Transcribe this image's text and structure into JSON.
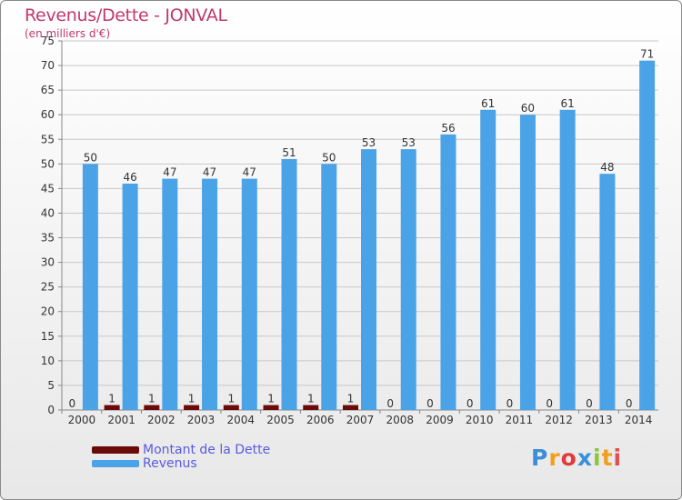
{
  "title": "Revenus/Dette - JONVAL",
  "subtitle": "(en milliers d'€)",
  "colors": {
    "title": "#c0396e",
    "dette": "#6b0a0a",
    "revenus": "#4aa3e6",
    "legend_text": "#5a5ae0"
  },
  "legend": [
    {
      "label": "Montant de la Dette",
      "color": "#6b0a0a"
    },
    {
      "label": "Revenus",
      "color": "#4aa3e6"
    }
  ],
  "logo": "Proxiti",
  "chart_data": {
    "type": "bar",
    "categories": [
      "2000",
      "2001",
      "2002",
      "2003",
      "2004",
      "2005",
      "2006",
      "2007",
      "2008",
      "2009",
      "2010",
      "2011",
      "2012",
      "2013",
      "2014"
    ],
    "series": [
      {
        "name": "Montant de la Dette",
        "values": [
          0,
          1,
          1,
          1,
          1,
          1,
          1,
          1,
          0,
          0,
          0,
          0,
          0,
          0,
          0
        ]
      },
      {
        "name": "Revenus",
        "values": [
          50,
          46,
          47,
          47,
          47,
          51,
          50,
          53,
          53,
          56,
          61,
          60,
          61,
          48,
          71
        ]
      }
    ],
    "ylim": [
      0,
      75
    ],
    "yticks": [
      0,
      5,
      10,
      15,
      20,
      25,
      30,
      35,
      40,
      45,
      50,
      55,
      60,
      65,
      70,
      75
    ],
    "grid": true,
    "legend_position": "bottom-left"
  }
}
